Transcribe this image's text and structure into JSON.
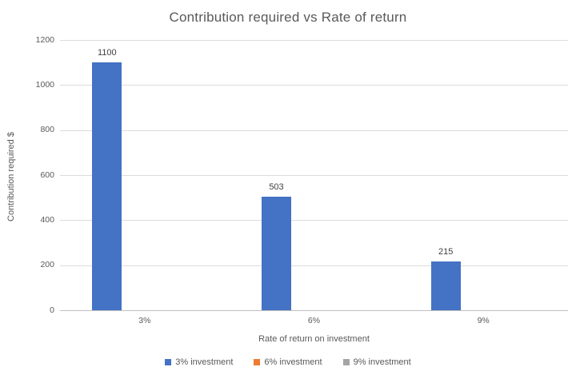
{
  "chart_data": {
    "type": "bar",
    "title": "Contribution required vs Rate of return",
    "xlabel": "Rate of return on investment",
    "ylabel": "Contribution required $",
    "categories": [
      "3%",
      "6%",
      "9%"
    ],
    "series": [
      {
        "name": "3% investment",
        "color": "#4472C4",
        "values": [
          1100,
          503,
          215
        ]
      },
      {
        "name": "6% investment",
        "color": "#ED7D31",
        "values": [
          null,
          null,
          null
        ]
      },
      {
        "name": "9% investment",
        "color": "#A5A5A5",
        "values": [
          null,
          null,
          null
        ]
      }
    ],
    "data_labels": true,
    "ylim": [
      0,
      1200
    ],
    "ytick_interval": 200,
    "yticks": [
      0,
      200,
      400,
      600,
      800,
      1000,
      1200
    ],
    "grid": true,
    "legend_position": "bottom",
    "colors": {
      "title_text": "#595959",
      "axis_text": "#595959",
      "value_label_text": "#404040",
      "gridline": "#dcdcdc",
      "axis_line": "#bfbfbf",
      "background": "#ffffff"
    }
  }
}
